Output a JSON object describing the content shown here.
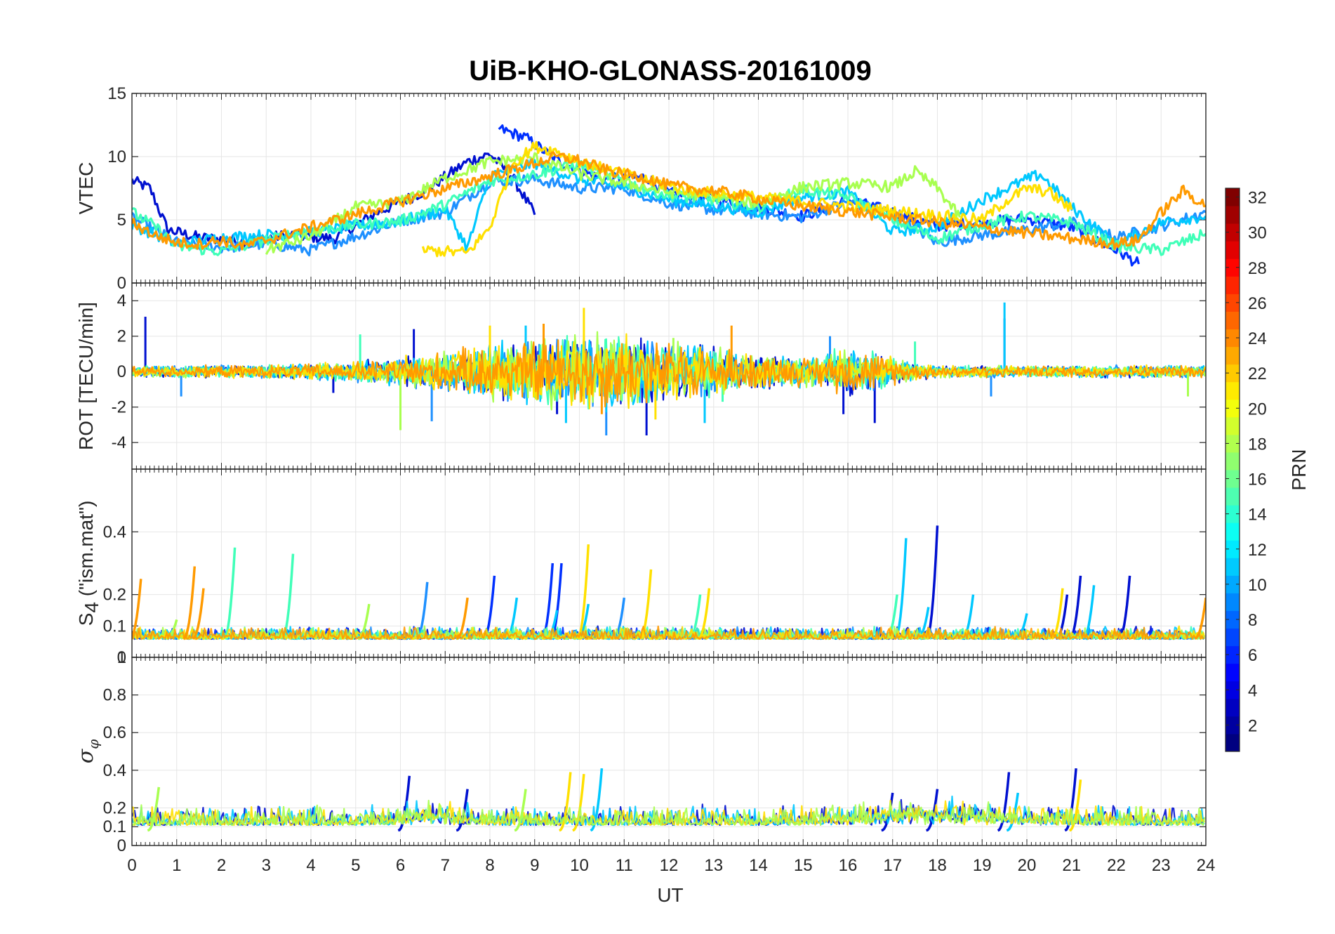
{
  "chart_data": {
    "type": "line",
    "title": "UiB-KHO-GLONASS-20161009",
    "xlabel": "UT",
    "x_ticks": [
      "0",
      "1",
      "2",
      "3",
      "4",
      "5",
      "6",
      "7",
      "8",
      "9",
      "10",
      "11",
      "12",
      "13",
      "14",
      "15",
      "16",
      "17",
      "18",
      "19",
      "20",
      "21",
      "22",
      "23",
      "24"
    ],
    "xlim": [
      0,
      24
    ],
    "grid": true,
    "panels": [
      {
        "ylabel": "VTEC",
        "ylim": [
          0,
          15
        ],
        "y_ticks": [
          "0",
          "5",
          "10",
          "15"
        ],
        "series": [
          {
            "color": "#0010d0",
            "x": [
              0,
              0.4,
              0.8,
              1.5,
              2.5,
              3.5,
              4.5,
              5.5,
              6.5,
              7.5,
              8,
              8.5,
              9
            ],
            "y": [
              8.1,
              7.5,
              4.2,
              3.6,
              3.3,
              3.8,
              3.5,
              5.6,
              7.2,
              9.6,
              10.2,
              8.4,
              5.4
            ]
          },
          {
            "color": "#0030ff",
            "x": [
              8.2,
              8.8,
              9.5,
              10.5,
              11.5,
              12,
              13,
              14,
              15,
              16,
              17,
              18,
              19,
              20,
              21,
              21.5,
              22,
              22.5
            ],
            "y": [
              12.2,
              11.5,
              9.7,
              8.2,
              8.4,
              7.1,
              6.7,
              6.0,
              5.3,
              6.6,
              5.6,
              4.5,
              4.8,
              5.1,
              4.4,
              3.4,
              2.6,
              1.5
            ]
          },
          {
            "color": "#1e90ff",
            "x": [
              0,
              1,
              2,
              3,
              4,
              5,
              6,
              7,
              8,
              9,
              10,
              11,
              12,
              13,
              14,
              15,
              16,
              17,
              18,
              19,
              20,
              21,
              22,
              23,
              24
            ],
            "y": [
              5.2,
              3.2,
              2.8,
              3.1,
              2.6,
              3.7,
              4.9,
              5.6,
              8.0,
              8.2,
              7.5,
              7.5,
              6.3,
              5.8,
              5.5,
              5.2,
              6.4,
              5.5,
              3.2,
              3.8,
              4.2,
              4.8,
              3.6,
              4.5,
              5.6
            ]
          },
          {
            "color": "#00c8ff",
            "x": [
              0,
              1,
              2,
              3,
              4,
              5,
              6,
              7,
              7.5,
              8,
              9,
              10,
              11,
              12,
              13,
              14,
              15,
              16,
              17,
              18,
              19,
              20,
              20.3,
              21,
              22,
              23,
              24
            ],
            "y": [
              4.6,
              3.1,
              3.6,
              3.8,
              4.0,
              4.5,
              4.9,
              5.8,
              2.8,
              8.5,
              9.5,
              8.2,
              7.6,
              6.6,
              6.1,
              5.6,
              6.8,
              7.2,
              4.1,
              4.4,
              6.6,
              8.2,
              8.6,
              6.0,
              3.0,
              4.8,
              5.3
            ]
          },
          {
            "color": "#40ffb8",
            "x": [
              0,
              0.5,
              1,
              2,
              3,
              4,
              5,
              6,
              7,
              8,
              9,
              10,
              11,
              12,
              13,
              14,
              15,
              16,
              17,
              18,
              19,
              20,
              21,
              22,
              23,
              24
            ],
            "y": [
              5.6,
              4.5,
              2.9,
              2.5,
              3.4,
              4.2,
              4.6,
              4.9,
              6.2,
              8.1,
              8.6,
              9.4,
              8.0,
              6.9,
              6.6,
              6.0,
              7.4,
              6.8,
              5.0,
              3.5,
              4.6,
              5.3,
              4.8,
              2.9,
              2.6,
              3.9
            ]
          },
          {
            "color": "#a8ff50",
            "x": [
              3,
              4,
              5,
              6,
              7,
              8,
              9,
              10,
              11,
              12,
              13,
              14,
              15,
              16,
              17,
              17.5,
              18,
              18.5
            ],
            "y": [
              2.6,
              3.7,
              6.0,
              6.4,
              8.3,
              9.6,
              9.9,
              8.6,
              7.9,
              7.2,
              6.9,
              6.3,
              7.6,
              7.9,
              7.6,
              8.8,
              7.5,
              5.2
            ]
          },
          {
            "color": "#ffe000",
            "x": [
              6.5,
              7.5,
              8,
              8.5,
              9,
              9.5,
              10,
              10.5,
              11,
              12,
              12.5,
              19,
              19.5,
              20,
              20.5,
              21
            ],
            "y": [
              2.6,
              2.4,
              4.4,
              9.4,
              10.8,
              10.4,
              9.6,
              9.1,
              8.6,
              7.7,
              7.3,
              5.0,
              6.4,
              7.5,
              7.2,
              5.8
            ]
          },
          {
            "color": "#ff9a00",
            "x": [
              0,
              0.5,
              1,
              1.5,
              2,
              2.5,
              9.5,
              10,
              10.5,
              11,
              11.5,
              12,
              13,
              14,
              14.5,
              22,
              22.5,
              23,
              23.5,
              24
            ],
            "y": [
              4.8,
              3.8,
              3.2,
              3.1,
              3.4,
              2.9,
              10.0,
              9.7,
              9.0,
              8.6,
              8.3,
              7.7,
              7.3,
              6.7,
              6.3,
              3.1,
              3.4,
              5.6,
              7.3,
              6.1
            ]
          }
        ]
      },
      {
        "ylabel": "ROT [TECU/min]",
        "ylim": [
          -5.5,
          5
        ],
        "y_ticks": [
          "-4",
          "-2",
          "0",
          "2",
          "4"
        ],
        "series": [
          {
            "color": "#0010d0",
            "x": [
              0.3,
              4.5,
              6.3,
              9.5,
              11.5,
              15.9,
              16.6,
              19.5
            ],
            "y": [
              3.1,
              -1.2,
              2.4,
              -2.4,
              -3.6,
              -2.4,
              -2.9,
              3.0
            ]
          },
          {
            "color": "#1e90ff",
            "x": [
              1.1,
              6.7,
              10.6,
              15.6,
              19.2
            ],
            "y": [
              -1.4,
              -2.8,
              -3.6,
              2.0,
              -1.4
            ]
          },
          {
            "color": "#00c8ff",
            "x": [
              8.8,
              9.7,
              12.8,
              19.5
            ],
            "y": [
              2.6,
              -2.9,
              -2.9,
              3.9
            ]
          },
          {
            "color": "#40ffb8",
            "x": [
              5.1,
              13.2,
              17.5
            ],
            "y": [
              2.1,
              -1.7,
              1.7
            ]
          },
          {
            "color": "#a8ff50",
            "x": [
              6.0,
              12.1,
              23.6
            ],
            "y": [
              -3.3,
              1.9,
              -1.4
            ]
          },
          {
            "color": "#ffe000",
            "x": [
              8.0,
              10.1,
              11.7
            ],
            "y": [
              2.6,
              3.6,
              -2.7
            ]
          },
          {
            "color": "#ff9a00",
            "x": [
              9.2,
              10.5,
              13.4
            ],
            "y": [
              2.7,
              -2.4,
              2.6
            ]
          }
        ]
      },
      {
        "ylabel": "S4 (\"ism.mat\")",
        "ylabel_main": "S",
        "ylabel_sub": "4",
        "ylabel_rest": " (\"ism.mat\")",
        "ylim": [
          0,
          0.6
        ],
        "y_ticks": [
          "0",
          "0.1",
          "0.2",
          "0.4"
        ],
        "series": [
          {
            "color": "#0010d0",
            "x": [
              18.0,
              20.9,
              21.2,
              22.3
            ],
            "y": [
              0.4,
              0.18,
              0.24,
              0.24
            ]
          },
          {
            "color": "#0030ff",
            "x": [
              8.1,
              9.4,
              9.6
            ],
            "y": [
              0.24,
              0.28,
              0.28
            ]
          },
          {
            "color": "#1e90ff",
            "x": [
              6.6,
              11.0
            ],
            "y": [
              0.22,
              0.17
            ]
          },
          {
            "color": "#00c8ff",
            "x": [
              8.6,
              9.5,
              10.2,
              17.3,
              17.8,
              18.8,
              20.0,
              21.5
            ],
            "y": [
              0.17,
              0.13,
              0.15,
              0.36,
              0.14,
              0.18,
              0.12,
              0.21
            ]
          },
          {
            "color": "#40ffb8",
            "x": [
              2.3,
              3.6,
              12.7,
              17.1
            ],
            "y": [
              0.33,
              0.31,
              0.18,
              0.18
            ]
          },
          {
            "color": "#a8ff50",
            "x": [
              1.0,
              5.3
            ],
            "y": [
              0.1,
              0.15
            ]
          },
          {
            "color": "#ffe000",
            "x": [
              10.2,
              11.6,
              12.9,
              20.8
            ],
            "y": [
              0.34,
              0.26,
              0.2,
              0.2
            ]
          },
          {
            "color": "#ff9a00",
            "x": [
              0.2,
              1.4,
              1.6,
              7.5,
              24.0
            ],
            "y": [
              0.23,
              0.27,
              0.2,
              0.17,
              0.17
            ]
          }
        ],
        "baseline": [
          0.04,
          0.1
        ]
      },
      {
        "ylabel": "σφ",
        "ylabel_main": "σ",
        "ylabel_sub": "φ",
        "ylim": [
          0,
          1
        ],
        "y_ticks": [
          "0",
          "0.1",
          "0.2",
          "0.4",
          "0.6",
          "0.8",
          "1"
        ],
        "series": [
          {
            "color": "#0010d0",
            "x": [
              6.2,
              7.5,
              17.0,
              18.0,
              19.6,
              21.1
            ],
            "y": [
              0.35,
              0.28,
              0.26,
              0.28,
              0.37,
              0.39
            ]
          },
          {
            "color": "#00c8ff",
            "x": [
              10.5,
              19.8
            ],
            "y": [
              0.39,
              0.26
            ]
          },
          {
            "color": "#ffe000",
            "x": [
              9.8,
              10.1,
              21.2
            ],
            "y": [
              0.37,
              0.36,
              0.33
            ]
          },
          {
            "color": "#a8ff50",
            "x": [
              0.6,
              8.8
            ],
            "y": [
              0.29,
              0.28
            ]
          }
        ],
        "baseline": [
          0.06,
          0.22
        ]
      }
    ],
    "colorbar": {
      "label": "PRN",
      "range": [
        1,
        32
      ],
      "ticks": [
        "2",
        "4",
        "6",
        "8",
        "10",
        "12",
        "14",
        "16",
        "18",
        "20",
        "22",
        "24",
        "26",
        "28",
        "30",
        "32"
      ],
      "colormap": "jet"
    }
  }
}
